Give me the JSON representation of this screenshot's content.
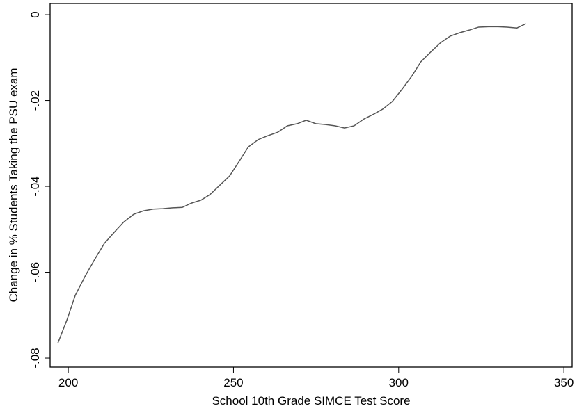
{
  "chart_data": {
    "type": "line",
    "xlabel": "School 10th Grade SIMCE Test Score",
    "ylabel": "Change in % Students Taking the PSU exam",
    "x": [
      196.8,
      199.6,
      202.1,
      205.1,
      208.0,
      210.9,
      213.9,
      216.8,
      219.8,
      222.7,
      225.7,
      228.6,
      231.6,
      234.5,
      237.3,
      240.2,
      242.9,
      245.9,
      248.8,
      251.6,
      254.5,
      257.5,
      260.4,
      263.4,
      266.3,
      269.3,
      272.0,
      274.9,
      277.9,
      280.8,
      283.6,
      286.5,
      289.5,
      292.4,
      295.2,
      298.1,
      301.1,
      304.0,
      306.7,
      309.7,
      312.6,
      315.6,
      318.5,
      321.3,
      324.2,
      327.2,
      330.1,
      332.8,
      335.8,
      338.5
    ],
    "series": [
      {
        "color": "#555555",
        "values": [
          -0.0766,
          -0.0711,
          -0.0654,
          -0.0609,
          -0.057,
          -0.0533,
          -0.0507,
          -0.0483,
          -0.0465,
          -0.0457,
          -0.0453,
          -0.0452,
          -0.045,
          -0.0449,
          -0.0439,
          -0.0432,
          -0.0419,
          -0.0397,
          -0.0376,
          -0.0343,
          -0.0308,
          -0.0291,
          -0.0282,
          -0.0274,
          -0.0259,
          -0.0254,
          -0.0246,
          -0.0254,
          -0.0256,
          -0.0259,
          -0.0264,
          -0.0259,
          -0.0243,
          -0.0232,
          -0.022,
          -0.0202,
          -0.0173,
          -0.0143,
          -0.011,
          -0.0087,
          -0.0066,
          -0.005,
          -0.0042,
          -0.0036,
          -0.0029,
          -0.0028,
          -0.0028,
          -0.0029,
          -0.0031,
          -0.0021
        ]
      }
    ],
    "xlim": [
      194.5,
      352.5
    ],
    "xticks": [
      200,
      250,
      300,
      350
    ],
    "ylim": [
      -0.0821,
      0.0026
    ],
    "yticks": [
      {
        "value": 0,
        "label": "0"
      },
      {
        "value": -0.02,
        "label": "-.02"
      },
      {
        "value": -0.04,
        "label": "-.04"
      },
      {
        "value": -0.06,
        "label": "-.06"
      },
      {
        "value": -0.08,
        "label": "-.08"
      }
    ]
  }
}
